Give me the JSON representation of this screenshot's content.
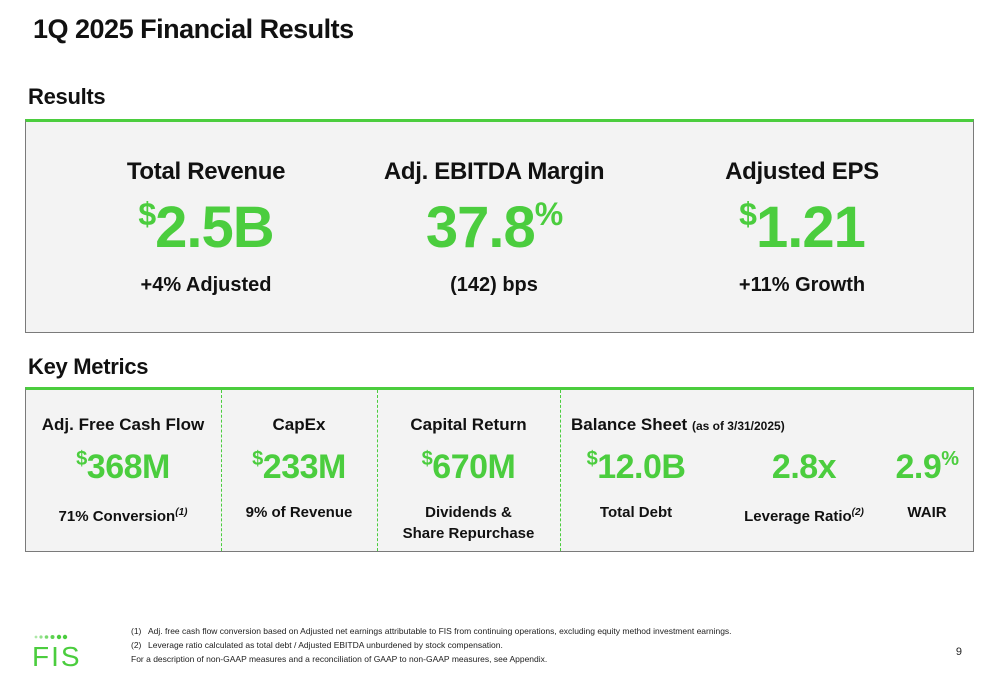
{
  "page": {
    "title": "1Q 2025 Financial Results",
    "page_number": "9"
  },
  "results": {
    "label": "Results",
    "items": [
      {
        "heading": "Total Revenue",
        "prefix": "$",
        "value": "2.5B",
        "suffix": "",
        "sub": "+4% Adjusted"
      },
      {
        "heading": "Adj. EBITDA Margin",
        "prefix": "",
        "value": "37.8",
        "suffix": "%",
        "sub": "(142) bps"
      },
      {
        "heading": "Adjusted EPS",
        "prefix": "$",
        "value": "1.21",
        "suffix": "",
        "sub": "+11% Growth"
      }
    ]
  },
  "key_metrics": {
    "label": "Key Metrics",
    "fcf": {
      "heading": "Adj. Free Cash Flow",
      "prefix": "$",
      "value": "368M",
      "sub": "71% Conversion",
      "footnote": "(1)"
    },
    "capex": {
      "heading": "CapEx",
      "prefix": "$",
      "value": "233M",
      "sub": "9% of Revenue"
    },
    "capital_return": {
      "heading": "Capital Return",
      "prefix": "$",
      "value": "670M",
      "sub_line1": "Dividends &",
      "sub_line2": "Share Repurchase"
    },
    "balance_sheet": {
      "heading": "Balance Sheet",
      "heading_note": "(as of 3/31/2025)",
      "total_debt": {
        "prefix": "$",
        "value": "12.0B",
        "sub": "Total Debt"
      },
      "leverage": {
        "value": "2.8x",
        "sub": "Leverage Ratio",
        "footnote": "(2)"
      },
      "wair": {
        "value": "2.9",
        "suffix": "%",
        "sub": "WAIR"
      }
    }
  },
  "footnotes": [
    {
      "num": "(1)",
      "text": "Adj. free cash flow conversion based on Adjusted net earnings attributable to FIS from continuing operations, excluding equity method investment earnings."
    },
    {
      "num": "(2)",
      "text": "Leverage ratio calculated as total debt / Adjusted EBITDA unburdened by stock compensation."
    }
  ],
  "footnote_extra": "For a description of non-GAAP measures and a reconciliation of GAAP to non-GAAP measures, see Appendix.",
  "logo": {
    "text": "FIS",
    "color": "#4bcd3e"
  },
  "colors": {
    "accent": "#4bcd3e",
    "panel": "#f3f3f3"
  }
}
